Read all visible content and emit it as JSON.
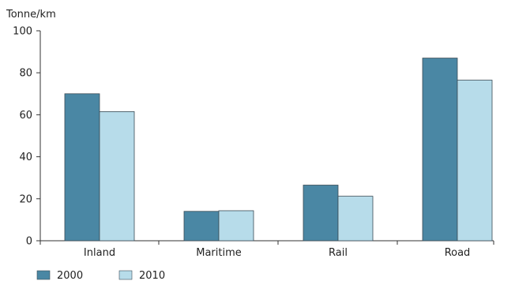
{
  "chart_data": {
    "type": "bar",
    "ylabel": "Tonne/km",
    "categories": [
      "Inland",
      "Maritime",
      "Rail",
      "Road"
    ],
    "series": [
      {
        "name": "2000",
        "values": [
          70,
          14,
          26.5,
          87
        ],
        "color": "#4a87a4"
      },
      {
        "name": "2010",
        "values": [
          61.5,
          14.3,
          21.2,
          76.5
        ],
        "color": "#b7dcea"
      }
    ],
    "ylim": [
      0,
      100
    ],
    "yticks": [
      "0",
      "20",
      "40",
      "60",
      "80",
      "100"
    ],
    "grid": false,
    "legend": "bottom-left"
  }
}
